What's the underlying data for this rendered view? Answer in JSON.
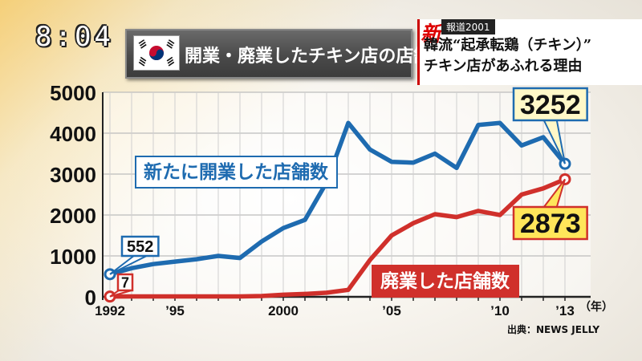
{
  "overlay": {
    "clock": "8:04",
    "title": "開業・廃業したチキン店の店舗数",
    "news_tag": "新",
    "news_program": "報道2001",
    "news_line1": "韓流“起承転鶏（チキン）”",
    "news_line2": "チキン店があふれる理由",
    "source": "出典：NEWS JELLY"
  },
  "chart_data": {
    "type": "line",
    "title": "開業・廃業したチキン店の店舗数",
    "xlabel": "（年）",
    "ylabel": "",
    "xlim": [
      1992,
      2013
    ],
    "ylim": [
      0,
      5000
    ],
    "grid": true,
    "x_tick_labels": [
      {
        "x": 1992,
        "label": "1992"
      },
      {
        "x": 1995,
        "label": "’95"
      },
      {
        "x": 2000,
        "label": "2000"
      },
      {
        "x": 2005,
        "label": "’05"
      },
      {
        "x": 2010,
        "label": "’10"
      },
      {
        "x": 2013,
        "label": "’13"
      }
    ],
    "y_ticks": [
      0,
      1000,
      2000,
      3000,
      4000,
      5000
    ],
    "x": [
      1992,
      1993,
      1994,
      1995,
      1996,
      1997,
      1998,
      1999,
      2000,
      2001,
      2002,
      2003,
      2004,
      2005,
      2006,
      2007,
      2008,
      2009,
      2010,
      2011,
      2012,
      2013
    ],
    "series": [
      {
        "name": "新たに開業した店舗数",
        "color": "#1e6bb0",
        "values": [
          552,
          700,
          800,
          860,
          920,
          1000,
          950,
          1350,
          1680,
          1880,
          2800,
          4250,
          3600,
          3300,
          3280,
          3500,
          3150,
          4200,
          4250,
          3700,
          3900,
          3252
        ],
        "end_label": "3252",
        "start_label": "552"
      },
      {
        "name": "廃業した店舗数",
        "color": "#d0302b",
        "values": [
          7,
          10,
          10,
          10,
          10,
          10,
          10,
          20,
          50,
          70,
          100,
          170,
          900,
          1500,
          1800,
          2020,
          1950,
          2100,
          2000,
          2500,
          2650,
          2873
        ],
        "end_label": "2873",
        "start_label": "7"
      }
    ]
  }
}
